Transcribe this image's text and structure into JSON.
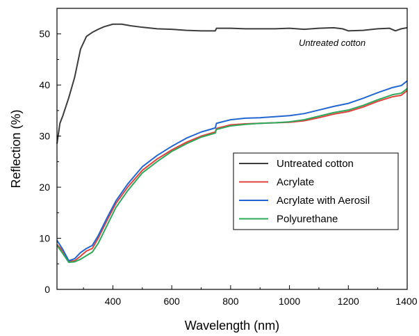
{
  "chart_data": {
    "type": "line",
    "title": "",
    "xlabel": "Wavelength (nm)",
    "ylabel": "Reflection (%)",
    "xlim": [
      210,
      1400
    ],
    "ylim": [
      0,
      55
    ],
    "xticks": [
      400,
      600,
      800,
      1000,
      1200,
      1400
    ],
    "yticks": [
      0,
      10,
      20,
      30,
      40,
      50
    ],
    "xtick_labels": [
      "400",
      "600",
      "800",
      "1000",
      "1200",
      "1400"
    ],
    "ytick_labels": [
      "0",
      "10",
      "20",
      "30",
      "40",
      "50"
    ],
    "grid": false,
    "legend_position": "center-right",
    "annotation": "Untreated cotton",
    "series": [
      {
        "name": "Untreated cotton",
        "color": "#3c3c3c",
        "x": [
          210,
          220,
          230,
          250,
          270,
          290,
          310,
          330,
          350,
          370,
          400,
          430,
          460,
          500,
          550,
          600,
          650,
          700,
          748,
          752,
          800,
          850,
          900,
          950,
          1000,
          1050,
          1100,
          1150,
          1180,
          1200,
          1250,
          1300,
          1340,
          1360,
          1380,
          1400
        ],
        "y": [
          28.5,
          32.5,
          34.0,
          37.5,
          41.5,
          47.0,
          49.5,
          50.3,
          50.9,
          51.4,
          51.9,
          51.9,
          51.6,
          51.3,
          51.0,
          50.9,
          50.7,
          50.6,
          50.6,
          51.1,
          51.1,
          51.0,
          51.0,
          51.0,
          51.1,
          50.9,
          51.1,
          51.2,
          51.0,
          50.6,
          50.7,
          51.0,
          51.1,
          50.6,
          51.0,
          51.2
        ]
      },
      {
        "name": "Acrylate",
        "color": "#e0413c",
        "x": [
          210,
          230,
          250,
          270,
          290,
          310,
          330,
          350,
          380,
          410,
          450,
          500,
          550,
          600,
          650,
          700,
          748,
          752,
          800,
          850,
          900,
          950,
          1000,
          1050,
          1100,
          1150,
          1200,
          1250,
          1300,
          1350,
          1380,
          1400
        ],
        "y": [
          8.8,
          7.5,
          5.5,
          5.6,
          6.5,
          7.5,
          8.0,
          10.0,
          13.5,
          16.8,
          20.0,
          23.3,
          25.5,
          27.3,
          28.8,
          30.0,
          30.8,
          31.5,
          32.2,
          32.4,
          32.5,
          32.6,
          32.7,
          33.0,
          33.6,
          34.3,
          34.8,
          35.7,
          36.8,
          37.7,
          38.0,
          38.9
        ]
      },
      {
        "name": "Acrylate with Aerosil",
        "color": "#2266d1",
        "x": [
          210,
          230,
          250,
          270,
          290,
          310,
          330,
          350,
          380,
          410,
          450,
          500,
          550,
          600,
          650,
          700,
          748,
          752,
          800,
          850,
          900,
          950,
          1000,
          1050,
          1100,
          1150,
          1200,
          1250,
          1300,
          1350,
          1380,
          1400
        ],
        "y": [
          9.6,
          7.8,
          5.6,
          6.0,
          7.2,
          8.0,
          8.6,
          10.5,
          14.0,
          17.3,
          20.6,
          24.0,
          26.2,
          28.0,
          29.6,
          30.8,
          31.6,
          32.5,
          33.2,
          33.5,
          33.6,
          33.8,
          34.0,
          34.4,
          35.1,
          35.8,
          36.4,
          37.4,
          38.5,
          39.5,
          39.9,
          40.8
        ]
      },
      {
        "name": "Polyurethane",
        "color": "#2ea85a",
        "x": [
          210,
          230,
          250,
          270,
          290,
          310,
          330,
          350,
          380,
          410,
          450,
          500,
          550,
          600,
          650,
          700,
          748,
          752,
          800,
          850,
          900,
          950,
          1000,
          1050,
          1100,
          1150,
          1200,
          1250,
          1300,
          1350,
          1380,
          1400
        ],
        "y": [
          8.6,
          7.0,
          5.3,
          5.4,
          5.9,
          6.6,
          7.3,
          9.0,
          12.5,
          16.0,
          19.3,
          22.8,
          25.0,
          27.0,
          28.5,
          29.8,
          30.6,
          31.3,
          32.0,
          32.3,
          32.5,
          32.6,
          32.8,
          33.2,
          33.9,
          34.6,
          35.1,
          36.0,
          37.1,
          38.1,
          38.4,
          39.3
        ]
      }
    ]
  }
}
